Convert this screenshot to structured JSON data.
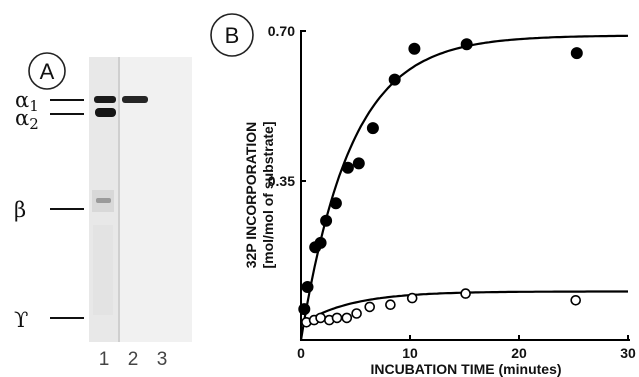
{
  "panels": {
    "a": {
      "label": "A",
      "lanes": [
        "1",
        "2",
        "3"
      ],
      "bands": [
        {
          "label": "α",
          "sub": "1"
        },
        {
          "label": "α",
          "sub": "2"
        },
        {
          "label": "β",
          "sub": ""
        },
        {
          "label": "ϒ",
          "sub": ""
        }
      ]
    },
    "b": {
      "label": "B"
    }
  },
  "chart_data": {
    "type": "scatter",
    "title": "",
    "xlabel": "INCUBATION TIME (minutes)",
    "ylabel_line1": "32P INCORPORATION",
    "ylabel_line2": "[mol/mol of substrate]",
    "xlim": [
      0,
      30
    ],
    "ylim": [
      0,
      0.7
    ],
    "x_ticks": [
      "0",
      "10",
      "20",
      "30"
    ],
    "y_ticks": [
      "0.35",
      "0.70"
    ],
    "grid": false,
    "series": [
      {
        "marker": "filled-circle",
        "points": [
          [
            0.3,
            0.07
          ],
          [
            0.6,
            0.12
          ],
          [
            1.3,
            0.21
          ],
          [
            1.8,
            0.22
          ],
          [
            2.3,
            0.27
          ],
          [
            3.2,
            0.31
          ],
          [
            4.3,
            0.39
          ],
          [
            5.3,
            0.4
          ],
          [
            6.6,
            0.48
          ],
          [
            8.6,
            0.59
          ],
          [
            10.4,
            0.66
          ],
          [
            15.2,
            0.67
          ],
          [
            25.3,
            0.65
          ]
        ],
        "fit": {
          "plateau": 0.69,
          "rate": 0.22
        }
      },
      {
        "marker": "open-circle",
        "points": [
          [
            0.5,
            0.04
          ],
          [
            1.2,
            0.045
          ],
          [
            1.8,
            0.05
          ],
          [
            2.6,
            0.045
          ],
          [
            3.3,
            0.05
          ],
          [
            4.2,
            0.05
          ],
          [
            5.1,
            0.06
          ],
          [
            6.3,
            0.075
          ],
          [
            8.2,
            0.08
          ],
          [
            10.2,
            0.095
          ],
          [
            15.1,
            0.105
          ],
          [
            25.2,
            0.09
          ]
        ],
        "fit": {
          "plateau": 0.11,
          "rate": 0.22,
          "baseline": 0.035
        }
      }
    ]
  }
}
